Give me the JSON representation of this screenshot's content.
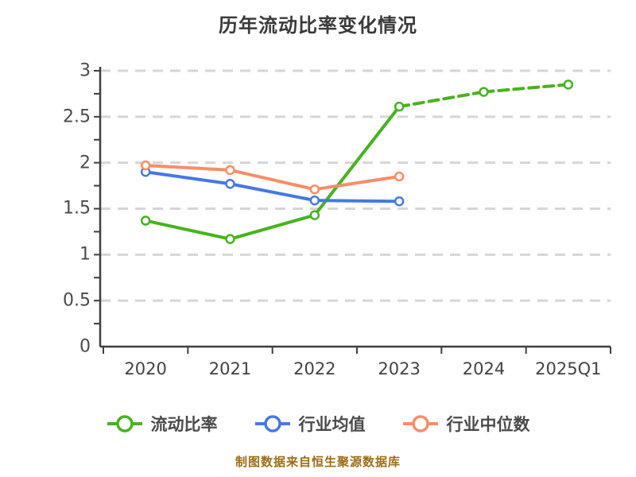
{
  "title": "历年流动比率变化情况",
  "caption": "制图数据来自恒生聚源数据库",
  "colors": {
    "grid": "#d6d6d6",
    "axis": "#3f3f3f",
    "tick_label": "#4a4a4a",
    "title_text": "#3a3a3a",
    "caption_text": "#9c6d15",
    "marker_fill": "#ffffff"
  },
  "chart_data": {
    "type": "line",
    "title": "历年流动比率变化情况",
    "categories": [
      "2020",
      "2021",
      "2022",
      "2023",
      "2024",
      "2025Q1"
    ],
    "series": [
      {
        "name": "流动比率",
        "color": "#47b31e",
        "values": [
          1.37,
          1.17,
          1.43,
          2.61,
          2.77,
          2.85
        ],
        "dash_from_index": 3
      },
      {
        "name": "行业均值",
        "color": "#4677e8",
        "values": [
          1.9,
          1.77,
          1.59,
          1.58,
          null,
          null
        ],
        "dash_from_index": null
      },
      {
        "name": "行业中位数",
        "color": "#fa8d68",
        "values": [
          1.97,
          1.92,
          1.71,
          1.85,
          null,
          null
        ],
        "dash_from_index": null
      }
    ],
    "xlabel": "",
    "ylabel": "",
    "ylim": [
      0,
      3
    ],
    "yticks": [
      0,
      0.5,
      1,
      1.5,
      2,
      2.5,
      3
    ],
    "minor_ytick_step": 0.25,
    "grid": "dashed-horizontal",
    "legend_position": "bottom"
  }
}
